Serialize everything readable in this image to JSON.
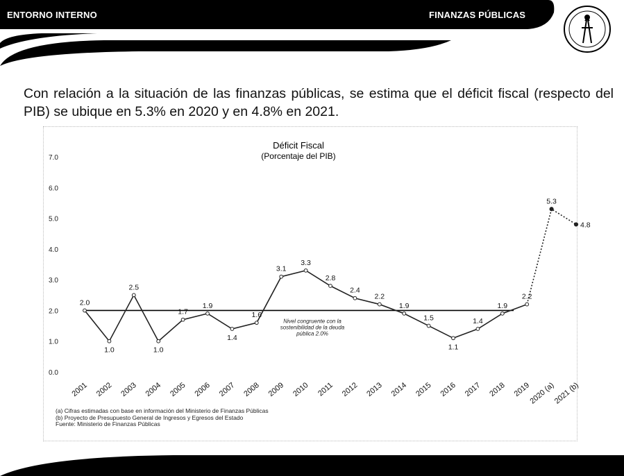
{
  "header": {
    "left_label": "ENTORNO INTERNO",
    "right_label": "FINANZAS PÚBLICAS",
    "seal_icon": "bank-seal-icon",
    "band_color": "#000000"
  },
  "intro_text": "Con relación a la situación de las finanzas públicas, se estima que el déficit fiscal (respecto del PIB) se ubique en 5.3% en 2020 y en 4.8% en 2021.",
  "chart_data": {
    "type": "line",
    "title": "Déficit Fiscal",
    "subtitle": "(Porcentaje del PIB)",
    "categories": [
      "2001",
      "2002",
      "2003",
      "2004",
      "2005",
      "2006",
      "2007",
      "2008",
      "2009",
      "2010",
      "2011",
      "2012",
      "2013",
      "2014",
      "2015",
      "2016",
      "2017",
      "2018",
      "2019",
      "2020 (a)",
      "2021 (b)"
    ],
    "series": [
      {
        "values": [
          2.0,
          1.0,
          2.5,
          1.0,
          1.7,
          1.9,
          1.4,
          1.6,
          3.1,
          3.3,
          2.8,
          2.4,
          2.2,
          1.9,
          1.5,
          1.1,
          1.4,
          1.9,
          2.2,
          5.3,
          4.8
        ],
        "labels": [
          "2.0",
          "1.0",
          "2.5",
          "1.0",
          "1.7",
          "1.9",
          "1.4",
          "1.6",
          "3.1",
          "3.3",
          "2.8",
          "2.4",
          "2.2",
          "1.9",
          "1.5",
          "1.1",
          "1.4",
          "1.9",
          "2.2",
          "5.3",
          "4.8"
        ],
        "projected_from_index": 18
      }
    ],
    "reference_line": {
      "value": 2.0,
      "label_lines": [
        "Nivel congruente con la",
        "sostenibilidad de la deuda",
        "pública 2.0%"
      ]
    },
    "y_ticks": [
      "0.0",
      "1.0",
      "2.0",
      "3.0",
      "4.0",
      "5.0",
      "6.0",
      "7.0"
    ],
    "ylim": [
      0,
      7
    ],
    "grid": false,
    "line_color": "#222222"
  },
  "notes": [
    "(a) Cifras estimadas con base en información del Ministerio de Finanzas Públicas",
    "(b) Proyecto de Presupuesto General de Ingresos y Egresos del Estado",
    "Fuente: Ministerio de Finanzas Públicas"
  ]
}
